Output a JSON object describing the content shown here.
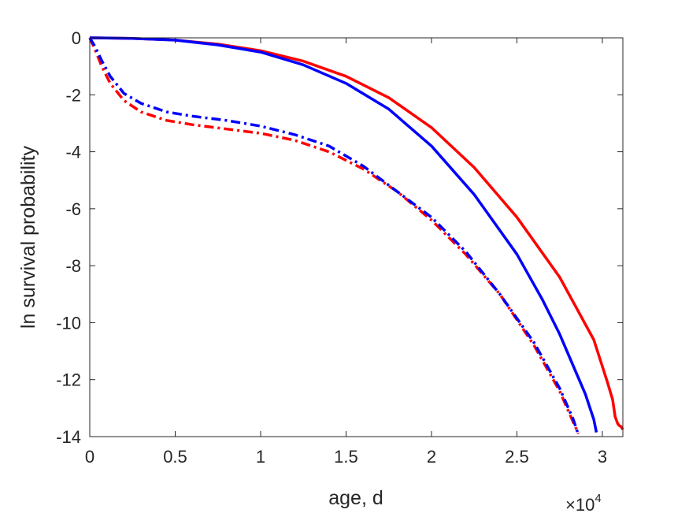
{
  "chart_data": {
    "type": "line",
    "title": "",
    "xlabel": "age, d",
    "ylabel": "ln survival probability",
    "x_exponent_label": {
      "base": "×10",
      "power": "4"
    },
    "x_scale_factor": 10000,
    "xlim": [
      0,
      31200
    ],
    "ylim": [
      -14,
      0
    ],
    "x_ticks": [
      0,
      5000,
      10000,
      15000,
      20000,
      25000,
      30000
    ],
    "x_tick_labels": [
      "0",
      "0.5",
      "1",
      "1.5",
      "2",
      "2.5",
      "3"
    ],
    "y_ticks": [
      0,
      -2,
      -4,
      -6,
      -8,
      -10,
      -12,
      -14
    ],
    "y_tick_labels": [
      "0",
      "-2",
      "-4",
      "-6",
      "-8",
      "-10",
      "-12",
      "-14"
    ],
    "grid": false,
    "box": true,
    "series": [
      {
        "color": "#ff0000",
        "style": "solid",
        "points": [
          [
            0,
            0
          ],
          [
            2500,
            -0.02
          ],
          [
            5000,
            -0.08
          ],
          [
            7500,
            -0.22
          ],
          [
            10000,
            -0.45
          ],
          [
            12500,
            -0.82
          ],
          [
            15000,
            -1.35
          ],
          [
            17500,
            -2.1
          ],
          [
            20000,
            -3.15
          ],
          [
            22500,
            -4.55
          ],
          [
            25000,
            -6.3
          ],
          [
            27500,
            -8.4
          ],
          [
            29500,
            -10.6
          ],
          [
            30300,
            -12.1
          ],
          [
            30600,
            -12.7
          ],
          [
            30750,
            -13.3
          ],
          [
            30900,
            -13.55
          ],
          [
            31000,
            -13.62
          ],
          [
            31100,
            -13.65
          ],
          [
            31200,
            -13.75
          ]
        ]
      },
      {
        "color": "#0000ff",
        "style": "solid",
        "points": [
          [
            0,
            0
          ],
          [
            2500,
            -0.02
          ],
          [
            5000,
            -0.08
          ],
          [
            7500,
            -0.25
          ],
          [
            10000,
            -0.5
          ],
          [
            12500,
            -0.95
          ],
          [
            15000,
            -1.6
          ],
          [
            17500,
            -2.5
          ],
          [
            20000,
            -3.8
          ],
          [
            22500,
            -5.5
          ],
          [
            25000,
            -7.6
          ],
          [
            26500,
            -9.2
          ],
          [
            27500,
            -10.4
          ],
          [
            28500,
            -11.8
          ],
          [
            29000,
            -12.5
          ],
          [
            29500,
            -13.4
          ],
          [
            29650,
            -13.85
          ]
        ]
      },
      {
        "color": "#ff0000",
        "style": "dashdot",
        "points": [
          [
            0,
            0
          ],
          [
            300,
            -0.4
          ],
          [
            700,
            -1.0
          ],
          [
            1200,
            -1.6
          ],
          [
            2000,
            -2.2
          ],
          [
            3000,
            -2.6
          ],
          [
            4500,
            -2.9
          ],
          [
            6000,
            -3.05
          ],
          [
            8000,
            -3.2
          ],
          [
            10000,
            -3.35
          ],
          [
            12000,
            -3.6
          ],
          [
            14000,
            -4.0
          ],
          [
            16000,
            -4.6
          ],
          [
            18000,
            -5.4
          ],
          [
            20000,
            -6.4
          ],
          [
            22000,
            -7.6
          ],
          [
            24000,
            -9.0
          ],
          [
            26000,
            -10.8
          ],
          [
            27500,
            -12.4
          ],
          [
            28300,
            -13.5
          ],
          [
            28600,
            -13.9
          ]
        ]
      },
      {
        "color": "#0000ff",
        "style": "dashdot",
        "points": [
          [
            0,
            0
          ],
          [
            300,
            -0.3
          ],
          [
            700,
            -0.8
          ],
          [
            1200,
            -1.35
          ],
          [
            2000,
            -1.95
          ],
          [
            3000,
            -2.3
          ],
          [
            4500,
            -2.6
          ],
          [
            6000,
            -2.75
          ],
          [
            8000,
            -2.9
          ],
          [
            10000,
            -3.1
          ],
          [
            12000,
            -3.4
          ],
          [
            14000,
            -3.8
          ],
          [
            16000,
            -4.5
          ],
          [
            18000,
            -5.4
          ],
          [
            20000,
            -6.3
          ],
          [
            22000,
            -7.5
          ],
          [
            24000,
            -9.0
          ],
          [
            26000,
            -10.7
          ],
          [
            27500,
            -12.3
          ],
          [
            28300,
            -13.4
          ],
          [
            28550,
            -13.85
          ]
        ]
      }
    ]
  }
}
